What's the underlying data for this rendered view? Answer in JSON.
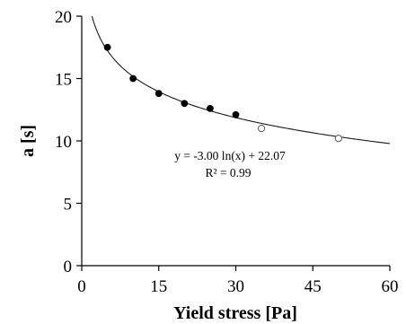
{
  "chart_data": {
    "type": "scatter",
    "xlabel": "Yield stress [Pa]",
    "ylabel": "a [s]",
    "xlim": [
      0,
      60
    ],
    "ylim": [
      0,
      20
    ],
    "x_ticks": [
      0,
      15,
      30,
      45,
      60
    ],
    "y_ticks": [
      0,
      5,
      10,
      15,
      20
    ],
    "grid": false,
    "series": [
      {
        "marker": "filled-circle",
        "color": "#000000",
        "points": [
          {
            "x": 5,
            "y": 17.5
          },
          {
            "x": 10,
            "y": 15.0
          },
          {
            "x": 15,
            "y": 13.8
          },
          {
            "x": 20,
            "y": 13.0
          },
          {
            "x": 25,
            "y": 12.6
          },
          {
            "x": 30,
            "y": 12.1
          }
        ]
      },
      {
        "marker": "open-circle",
        "color": "#000000",
        "points": [
          {
            "x": 35,
            "y": 11.0
          },
          {
            "x": 50,
            "y": 10.2
          }
        ]
      }
    ],
    "fit": {
      "type": "logarithmic",
      "slope": -3.0,
      "intercept": 22.07,
      "equation": "y = -3.00 ln(x) + 22.07",
      "r_squared": "R² = 0.99"
    }
  }
}
